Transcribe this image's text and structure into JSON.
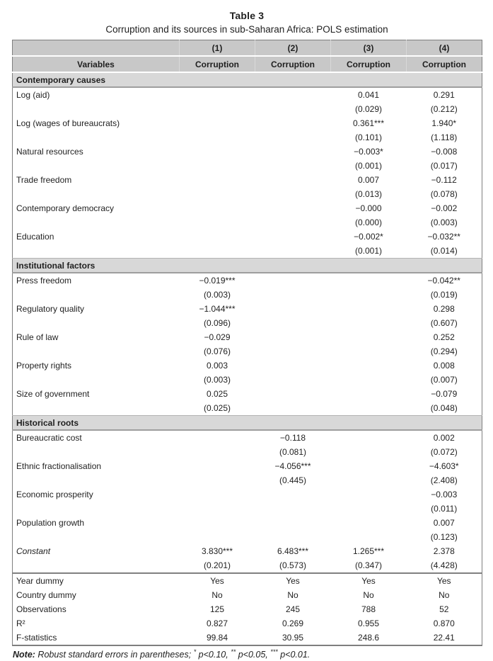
{
  "page": {
    "title": "Table 3",
    "subtitle": "Corruption and its sources in sub-Saharan Africa: POLS estimation"
  },
  "table": {
    "header": {
      "variables_label": "Variables",
      "model_numbers": [
        "(1)",
        "(2)",
        "(3)",
        "(4)"
      ],
      "dep_vars": [
        "Corruption",
        "Corruption",
        "Corruption",
        "Corruption"
      ]
    },
    "sections": [
      {
        "label": "Contemporary causes",
        "rows": [
          {
            "variable": "Log (aid)",
            "estimates": [
              "",
              "",
              "0.041",
              "0.291"
            ],
            "se": [
              "",
              "",
              "(0.029)",
              "(0.212)"
            ]
          },
          {
            "variable": "Log (wages of bureaucrats)",
            "estimates": [
              "",
              "",
              "0.361***",
              "1.940*"
            ],
            "se": [
              "",
              "",
              "(0.101)",
              "(1.118)"
            ]
          },
          {
            "variable": "Natural resources",
            "estimates": [
              "",
              "",
              "−0.003*",
              "−0.008"
            ],
            "se": [
              "",
              "",
              "(0.001)",
              "(0.017)"
            ]
          },
          {
            "variable": "Trade freedom",
            "estimates": [
              "",
              "",
              "0.007",
              "−0.112"
            ],
            "se": [
              "",
              "",
              "(0.013)",
              "(0.078)"
            ]
          },
          {
            "variable": "Contemporary democracy",
            "estimates": [
              "",
              "",
              "−0.000",
              "−0.002"
            ],
            "se": [
              "",
              "",
              "(0.000)",
              "(0.003)"
            ]
          },
          {
            "variable": "Education",
            "estimates": [
              "",
              "",
              "−0.002*",
              "−0.032**"
            ],
            "se": [
              "",
              "",
              "(0.001)",
              "(0.014)"
            ]
          }
        ]
      },
      {
        "label": "Institutional factors",
        "rows": [
          {
            "variable": "Press freedom",
            "estimates": [
              "−0.019***",
              "",
              "",
              "−0.042**"
            ],
            "se": [
              "(0.003)",
              "",
              "",
              "(0.019)"
            ]
          },
          {
            "variable": "Regulatory quality",
            "estimates": [
              "−1.044***",
              "",
              "",
              "0.298"
            ],
            "se": [
              "(0.096)",
              "",
              "",
              "(0.607)"
            ]
          },
          {
            "variable": "Rule of law",
            "estimates": [
              "−0.029",
              "",
              "",
              "0.252"
            ],
            "se": [
              "(0.076)",
              "",
              "",
              "(0.294)"
            ]
          },
          {
            "variable": "Property rights",
            "estimates": [
              "0.003",
              "",
              "",
              "0.008"
            ],
            "se": [
              "(0.003)",
              "",
              "",
              "(0.007)"
            ]
          },
          {
            "variable": "Size of government",
            "estimates": [
              "0.025",
              "",
              "",
              "−0.079"
            ],
            "se": [
              "(0.025)",
              "",
              "",
              "(0.048)"
            ]
          }
        ]
      },
      {
        "label": "Historical roots",
        "rows": [
          {
            "variable": "Bureaucratic cost",
            "estimates": [
              "",
              "−0.118",
              "",
              "0.002"
            ],
            "se": [
              "",
              "(0.081)",
              "",
              "(0.072)"
            ]
          },
          {
            "variable": "Ethnic fractionalisation",
            "estimates": [
              "",
              "−4.056***",
              "",
              "−4.603*"
            ],
            "se": [
              "",
              "(0.445)",
              "",
              "(2.408)"
            ]
          },
          {
            "variable": "Economic prosperity",
            "estimates": [
              "",
              "",
              "",
              "−0.003"
            ],
            "se": [
              "",
              "",
              "",
              "(0.011)"
            ]
          },
          {
            "variable": "Population growth",
            "estimates": [
              "",
              "",
              "",
              "0.007"
            ],
            "se": [
              "",
              "",
              "",
              "(0.123)"
            ]
          },
          {
            "variable": "Constant",
            "italic": true,
            "estimates": [
              "3.830***",
              "6.483***",
              "1.265***",
              "2.378"
            ],
            "se": [
              "(0.201)",
              "(0.573)",
              "(0.347)",
              "(4.428)"
            ]
          }
        ]
      }
    ],
    "summary": [
      {
        "label": "Year dummy",
        "values": [
          "Yes",
          "Yes",
          "Yes",
          "Yes"
        ]
      },
      {
        "label": "Country dummy",
        "values": [
          "No",
          "No",
          "No",
          "No"
        ]
      },
      {
        "label": "Observations",
        "values": [
          "125",
          "245",
          "788",
          "52"
        ]
      },
      {
        "label": "R²",
        "values": [
          "0.827",
          "0.269",
          "0.955",
          "0.870"
        ]
      },
      {
        "label": "F-statistics",
        "values": [
          "99.84",
          "30.95",
          "248.6",
          "22.41"
        ]
      }
    ]
  },
  "note": {
    "prefix": "Note:",
    "segments": [
      {
        "text": " Robust standard errors in parentheses; ",
        "sup": false
      },
      {
        "text": "*",
        "sup": true
      },
      {
        "text": " p<0.10, ",
        "sup": false
      },
      {
        "text": "**",
        "sup": true
      },
      {
        "text": " p<0.05, ",
        "sup": false
      },
      {
        "text": "***",
        "sup": true
      },
      {
        "text": " p<0.01.",
        "sup": false
      }
    ]
  },
  "colors": {
    "header_bg": "#c8c8c8",
    "section_bg": "#d8d8d8",
    "border_dark": "#7f7f7f",
    "border_mid": "#9e9e9e",
    "text": "#1f1f1f"
  }
}
